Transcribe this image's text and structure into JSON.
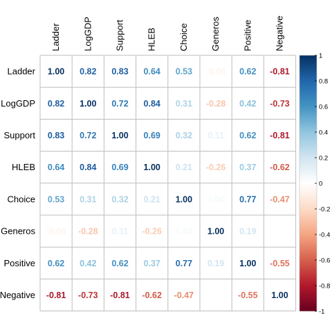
{
  "chart_data": {
    "type": "heatmap",
    "title": "",
    "variables": [
      "Ladder",
      "LogGDP",
      "Support",
      "HLEB",
      "Choice",
      "Generos",
      "Positive",
      "Negative"
    ],
    "matrix": [
      [
        1.0,
        0.82,
        0.83,
        0.64,
        0.53,
        -0.06,
        0.62,
        -0.81
      ],
      [
        0.82,
        1.0,
        0.72,
        0.84,
        0.31,
        -0.28,
        0.42,
        -0.73
      ],
      [
        0.83,
        0.72,
        1.0,
        0.69,
        0.32,
        0.11,
        0.62,
        -0.81
      ],
      [
        0.64,
        0.84,
        0.69,
        1.0,
        0.21,
        -0.26,
        0.37,
        -0.62
      ],
      [
        0.53,
        0.31,
        0.32,
        0.21,
        1.0,
        0.04,
        0.77,
        -0.47
      ],
      [
        -0.06,
        -0.28,
        0.11,
        -0.26,
        0.04,
        1.0,
        0.19,
        0.0
      ],
      [
        0.62,
        0.42,
        0.62,
        0.37,
        0.77,
        0.19,
        1.0,
        -0.55
      ],
      [
        -0.81,
        -0.73,
        -0.81,
        -0.62,
        -0.47,
        0.0,
        -0.55,
        1.0
      ]
    ],
    "value_labels": [
      [
        "1.00",
        "0.82",
        "0.83",
        "0.64",
        "0.53",
        "-0.06",
        "0.62",
        "-0.81"
      ],
      [
        "0.82",
        "1.00",
        "0.72",
        "0.84",
        "0.31",
        "-0.28",
        "0.42",
        "-0.73"
      ],
      [
        "0.83",
        "0.72",
        "1.00",
        "0.69",
        "0.32",
        "0.11",
        "0.62",
        "-0.81"
      ],
      [
        "0.64",
        "0.84",
        "0.69",
        "1.00",
        "0.21",
        "-0.26",
        "0.37",
        "-0.62"
      ],
      [
        "0.53",
        "0.31",
        "0.32",
        "0.21",
        "1.00",
        "0.04",
        "0.77",
        "-0.47"
      ],
      [
        "-0.06",
        "-0.28",
        "0.11",
        "-0.26",
        "0.04",
        "1.00",
        "0.19",
        "0.00"
      ],
      [
        "0.62",
        "0.42",
        "0.62",
        "0.37",
        "0.77",
        "0.19",
        "1.00",
        "-0.55"
      ],
      [
        "-0.81",
        "-0.73",
        "-0.81",
        "-0.62",
        "-0.47",
        "0.00",
        "-0.55",
        "1.00"
      ]
    ],
    "colorbar": {
      "range": [
        -1,
        1
      ],
      "ticks": [
        "1",
        "0.8",
        "0.6",
        "0.4",
        "0.2",
        "0",
        "-0.2",
        "-0.4",
        "-0.6",
        "-0.8",
        "-1"
      ],
      "palette": [
        "#67001F",
        "#B2182B",
        "#D6604D",
        "#F4A582",
        "#FDDBC7",
        "#FFFFFF",
        "#D1E5F0",
        "#92C5DE",
        "#4393C3",
        "#2166AC",
        "#053061"
      ]
    },
    "grid": true,
    "legend": "right"
  }
}
